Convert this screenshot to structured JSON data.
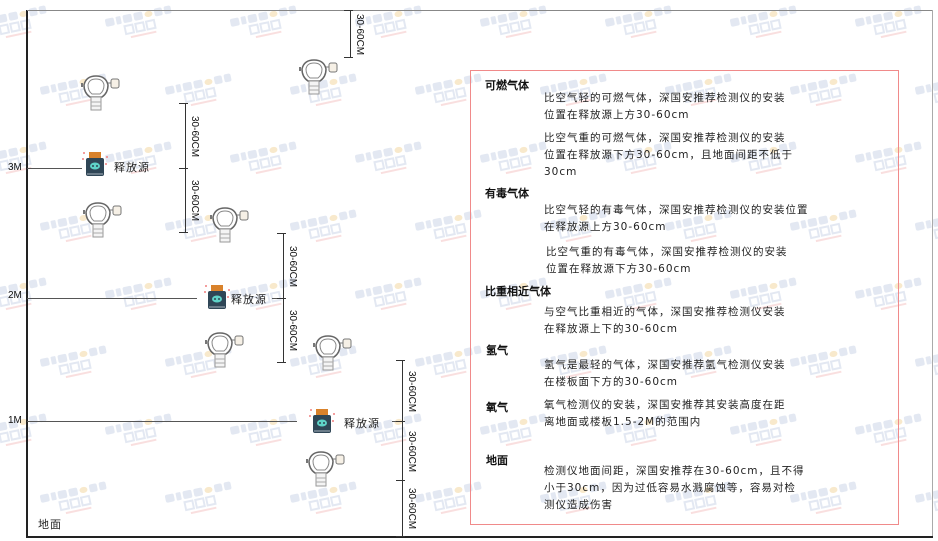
{
  "watermark": {
    "en": "SINGOAN",
    "cn": "深国安",
    "sub": "股票代码:861434"
  },
  "levels": [
    {
      "label": "3M"
    },
    {
      "label": "2M"
    },
    {
      "label": "1M"
    }
  ],
  "ground_label": "地面",
  "source_label": "释放源",
  "dimension_label": "30-60CM",
  "colors": {
    "frame": "#222222",
    "box_border": "#f08a8a",
    "watermark": "#c9d3e6",
    "source_cap": "#d9822b",
    "source_body": "#2f4656",
    "source_face": "#5fd3c8"
  },
  "notes": {
    "combustible": {
      "title": "可燃气体",
      "lighter": [
        "比空气轻的可燃气体，深国安推荐检测仪的安装",
        "位置在释放源上方30-60cm"
      ],
      "heavier": [
        "比空气重的可燃气体，深国安推荐检测仪的安装",
        "位置在释放源下方30-60cm，且地面间距不低于",
        "30cm"
      ]
    },
    "toxic": {
      "title": "有毒气体",
      "lighter": [
        "比空气轻的有毒气体，深国安推荐检测仪的安装位置",
        "在释放源上方30-60cm"
      ],
      "heavier": [
        "比空气重的有毒气体，深国安推荐检测仪的安装",
        "位置在释放源下方30-60cm"
      ]
    },
    "similar": {
      "title": "比重相近气体",
      "text": [
        "与空气比重相近的气体，深国安推荐检测仪安装",
        "在释放源上下的30-60cm"
      ]
    },
    "hydrogen": {
      "title": "氢气",
      "text": [
        "氢气是最轻的气体，深国安推荐氢气检测仪安装",
        "在楼板面下方的30-60cm"
      ]
    },
    "oxygen": {
      "title": "氧气",
      "text": [
        "氧气检测仪的安装，深国安推荐其安装高度在距",
        "离地面或楼板1.5-2M的范围内"
      ]
    },
    "ground": {
      "title": "地面",
      "text": [
        "检测仪地面间距，深国安推荐在30-60cm，且不得",
        "小于30cm，因为过低容易水溅腐蚀等，容易对检",
        "测仪造成伤害"
      ]
    }
  }
}
